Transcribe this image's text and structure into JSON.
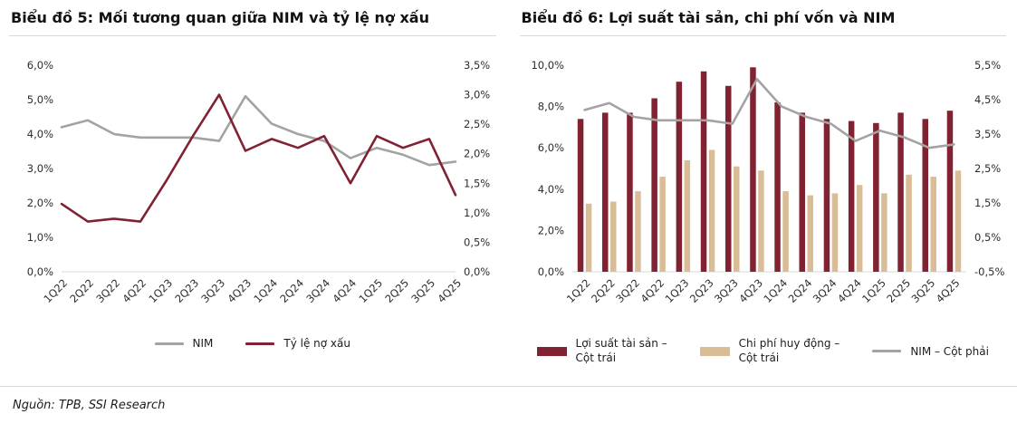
{
  "footer": {
    "source": "Nguồn: TPB, SSI Research"
  },
  "chart_data": [
    {
      "type": "line",
      "title": "Biểu đồ 5: Mối tương quan giữa NIM và tỷ lệ nợ xấu",
      "categories": [
        "1Q22",
        "2Q22",
        "3Q22",
        "4Q22",
        "1Q23",
        "2Q23",
        "3Q23",
        "4Q23",
        "1Q24",
        "2Q24",
        "3Q24",
        "4Q24",
        "1Q25",
        "2Q25",
        "3Q25",
        "4Q25"
      ],
      "series": [
        {
          "name": "NIM",
          "type": "line",
          "axis": "left",
          "color": "#A3A3A3",
          "values": [
            4.2,
            4.4,
            4.0,
            3.9,
            3.9,
            3.9,
            3.8,
            5.1,
            4.3,
            4.0,
            3.8,
            3.3,
            3.6,
            3.4,
            3.1,
            3.2
          ]
        },
        {
          "name": "Tỷ lệ nợ xấu",
          "type": "line",
          "axis": "right",
          "color": "#802232",
          "values": [
            1.15,
            0.85,
            0.9,
            0.85,
            1.55,
            2.3,
            3.0,
            2.05,
            2.25,
            2.1,
            2.3,
            1.5,
            2.3,
            2.1,
            2.25,
            1.3
          ]
        }
      ],
      "left_axis": {
        "min": 0,
        "max": 6,
        "tick_labels": [
          "0,0%",
          "1,0%",
          "2,0%",
          "3,0%",
          "4,0%",
          "5,0%",
          "6,0%"
        ]
      },
      "right_axis": {
        "min": 0,
        "max": 3.5,
        "tick_labels": [
          "0,0%",
          "0,5%",
          "1,0%",
          "1,5%",
          "2,0%",
          "2,5%",
          "3,0%",
          "3,5%"
        ]
      },
      "legend": [
        {
          "lines": [
            "NIM"
          ],
          "marker": "line"
        },
        {
          "lines": [
            "Tỷ lệ nợ xấu"
          ],
          "marker": "line"
        }
      ],
      "grid": "off",
      "legend_position": "bottom"
    },
    {
      "type": "bar",
      "title": "Biểu đồ 6: Lợi suất tài sản, chi phí vốn và NIM",
      "categories": [
        "1Q22",
        "2Q22",
        "3Q22",
        "4Q22",
        "1Q23",
        "2Q23",
        "3Q23",
        "4Q23",
        "1Q24",
        "2Q24",
        "3Q24",
        "4Q24",
        "1Q25",
        "2Q25",
        "3Q25",
        "4Q25"
      ],
      "series": [
        {
          "name": "Lợi suất tài sản – Cột trái",
          "type": "bar",
          "axis": "left",
          "color": "#802232",
          "values": [
            7.4,
            7.7,
            7.7,
            8.4,
            9.2,
            9.7,
            9.0,
            9.9,
            8.2,
            7.7,
            7.4,
            7.3,
            7.2,
            7.7,
            7.4,
            7.8
          ]
        },
        {
          "name": "Chi phí huy động – Cột trái",
          "type": "bar",
          "axis": "left",
          "color": "#D9BD96",
          "values": [
            3.3,
            3.4,
            3.9,
            4.6,
            5.4,
            5.9,
            5.1,
            4.9,
            3.9,
            3.7,
            3.8,
            4.2,
            3.8,
            4.7,
            4.6,
            4.9
          ]
        },
        {
          "name": "NIM – Cột phải",
          "type": "line",
          "axis": "right",
          "color": "#A3A3A3",
          "values": [
            4.2,
            4.4,
            4.0,
            3.9,
            3.9,
            3.9,
            3.8,
            5.1,
            4.3,
            4.0,
            3.8,
            3.3,
            3.6,
            3.4,
            3.1,
            3.2
          ]
        }
      ],
      "left_axis": {
        "min": 0,
        "max": 10,
        "tick_labels": [
          "0,0%",
          "2,0%",
          "4,0%",
          "6,0%",
          "8,0%",
          "10,0%"
        ]
      },
      "right_axis": {
        "min": -0.5,
        "max": 5.5,
        "tick_labels": [
          "-0,5%",
          "0,5%",
          "1,5%",
          "2,5%",
          "3,5%",
          "4,5%",
          "5,5%"
        ]
      },
      "legend": [
        {
          "lines": [
            "Lợi suất tài sản –",
            "Cột trái"
          ],
          "marker": "rect"
        },
        {
          "lines": [
            "Chi phí huy động –",
            "Cột trái"
          ],
          "marker": "rect"
        },
        {
          "lines": [
            "NIM – Cột phải"
          ],
          "marker": "line"
        }
      ],
      "grid": "off",
      "legend_position": "bottom"
    }
  ]
}
